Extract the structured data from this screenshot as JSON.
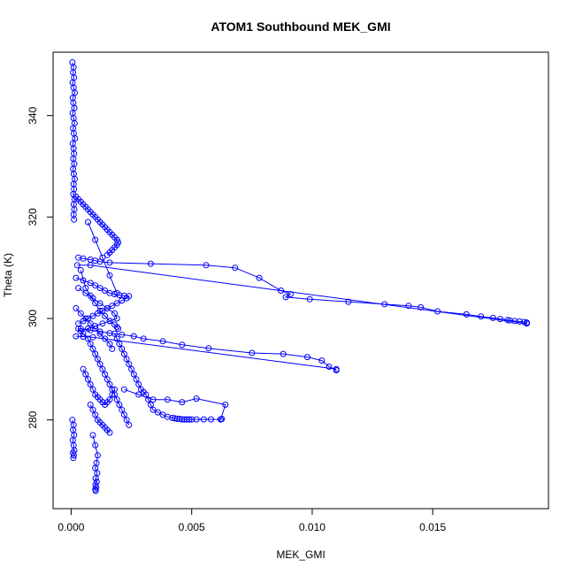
{
  "chart_data": {
    "type": "scatter",
    "title": "ATOM1 Southbound MEK_GMI",
    "xlabel": "MEK_GMI",
    "ylabel": "Theta (K)",
    "xlim": [
      -0.00075,
      0.0198
    ],
    "ylim": [
      262.5,
      352.5
    ],
    "xticks": [
      0.0,
      0.005,
      0.01,
      0.015
    ],
    "xtick_labels": [
      "0.000",
      "0.005",
      "0.010",
      "0.015"
    ],
    "yticks": [
      280,
      300,
      320,
      340
    ],
    "ytick_labels": [
      "280",
      "300",
      "320",
      "340"
    ],
    "grid": false,
    "legend": "none",
    "color": "#0000ff",
    "marker": "open-circle",
    "series": [
      {
        "x": [
          5e-05,
          0.0001,
          8e-05,
          0.00012,
          6e-05,
          0.0001,
          0.00015,
          7e-05,
          9e-05,
          0.00013,
          6e-05,
          0.0001,
          0.00014,
          8e-05,
          0.00011,
          0.00016,
          7e-05,
          0.0001,
          0.00012,
          9e-05,
          0.00013,
          8e-05,
          0.00011,
          0.00015,
          0.0001,
          0.00012,
          9e-05,
          0.00014,
          0.00011,
          0.00013,
          0.0001,
          0.00012
        ],
        "y": [
          350.5,
          349.5,
          348.5,
          347.5,
          346.5,
          345.5,
          344.5,
          343.5,
          342.5,
          341.5,
          340.5,
          339.5,
          338.5,
          337.5,
          336.5,
          335.5,
          334.5,
          333.5,
          332.5,
          331.5,
          330.5,
          329.5,
          328.5,
          327.5,
          326.5,
          325.5,
          324.5,
          323.5,
          322.5,
          321.5,
          320.5,
          319.5
        ]
      },
      {
        "x": [
          0.0002,
          0.0003,
          0.0004,
          0.0005,
          0.0006,
          0.0007,
          0.0008,
          0.0009,
          0.001,
          0.0011,
          0.0012,
          0.0013,
          0.0014,
          0.0015,
          0.0016,
          0.0017,
          0.0018,
          0.0019,
          0.00195,
          0.0019,
          0.0018,
          0.0017,
          0.0016,
          0.0015
        ],
        "y": [
          324.0,
          323.5,
          323.0,
          322.5,
          322.0,
          321.5,
          321.0,
          320.5,
          320.0,
          319.5,
          319.0,
          318.5,
          318.0,
          317.5,
          317.0,
          316.5,
          316.0,
          315.5,
          315.0,
          314.5,
          314.0,
          313.5,
          313.0,
          312.5
        ]
      },
      {
        "x": [
          0.0002,
          0.0005,
          0.0008,
          0.001,
          0.0012,
          0.0014,
          0.0016,
          0.0018,
          0.002,
          0.0022,
          0.0024,
          0.0023,
          0.0021,
          0.0019,
          0.0017,
          0.0015,
          0.0013,
          0.0011,
          0.0009,
          0.0007,
          0.0005,
          0.0003
        ],
        "y": [
          308.0,
          307.5,
          307.0,
          306.5,
          306.0,
          305.5,
          305.0,
          304.8,
          304.6,
          304.5,
          304.4,
          304.0,
          303.5,
          303.0,
          302.5,
          302.0,
          301.5,
          301.0,
          300.5,
          300.0,
          299.5,
          299.0
        ]
      },
      {
        "x": [
          0.0004,
          0.0006,
          0.0008,
          0.001,
          0.0012,
          0.0014,
          0.0016,
          0.0018,
          0.0019,
          0.00195
        ],
        "y": [
          309.5,
          306.0,
          304.5,
          303.0,
          301.5,
          300.5,
          299.5,
          298.8,
          298.3,
          298.0
        ]
      },
      {
        "x": [
          0.0007,
          0.001,
          0.0013,
          0.0016,
          0.0019
        ],
        "y": [
          319.0,
          315.5,
          312.0,
          308.5,
          305.0
        ]
      },
      {
        "x": [
          0.0003,
          0.0005,
          0.0008,
          0.001,
          0.0012,
          0.0016,
          0.0033,
          0.0056,
          0.0068,
          0.0078,
          0.0087,
          0.0091,
          0.0089,
          0.0099,
          0.0115,
          0.013,
          0.014,
          0.0145,
          0.0152,
          0.0164,
          0.017,
          0.0175,
          0.0178,
          0.0181,
          0.0182,
          0.0184,
          0.0186,
          0.0188,
          0.0189
        ],
        "y": [
          312.0,
          311.8,
          311.6,
          311.4,
          311.2,
          311.0,
          310.8,
          310.5,
          310.0,
          308.0,
          305.5,
          304.8,
          304.2,
          303.8,
          303.3,
          302.8,
          302.5,
          302.2,
          301.4,
          300.8,
          300.4,
          300.1,
          299.9,
          299.7,
          299.6,
          299.5,
          299.4,
          299.3,
          299.2
        ]
      },
      {
        "x": [
          0.00025,
          0.0008,
          0.0189
        ],
        "y": [
          310.5,
          310.5,
          299.0
        ]
      },
      {
        "x": [
          0.0004,
          0.0008,
          0.0012,
          0.0016,
          0.0021,
          0.0026,
          0.003,
          0.0038,
          0.0046,
          0.0057,
          0.0075,
          0.0088,
          0.0098,
          0.0104,
          0.0107,
          0.011
        ],
        "y": [
          298.0,
          297.7,
          297.4,
          297.1,
          296.8,
          296.5,
          296.0,
          295.5,
          294.8,
          294.1,
          293.2,
          293.0,
          292.4,
          291.7,
          290.5,
          289.8
        ]
      },
      {
        "x": [
          0.0002,
          0.0005,
          0.0009,
          0.011
        ],
        "y": [
          296.5,
          296.4,
          296.3,
          290.0
        ]
      },
      {
        "x": [
          0.0018,
          0.0019,
          0.002,
          0.0021,
          0.0022,
          0.0023,
          0.0024,
          0.0025,
          0.0026,
          0.0027,
          0.0028,
          0.0029,
          0.003,
          0.0031,
          0.0032,
          0.0033,
          0.0034,
          0.0036,
          0.0038,
          0.004,
          0.0042,
          0.0043,
          0.0044,
          0.0045,
          0.0046,
          0.0047,
          0.0048,
          0.0049,
          0.005,
          0.0052,
          0.0055,
          0.0058,
          0.0062,
          0.00625
        ],
        "y": [
          297.0,
          296.0,
          295.0,
          294.0,
          293.0,
          292.0,
          291.0,
          290.0,
          289.0,
          288.0,
          287.0,
          286.0,
          285.5,
          285.0,
          284.0,
          283.0,
          282.0,
          281.5,
          281.0,
          280.6,
          280.4,
          280.3,
          280.2,
          280.2,
          280.1,
          280.1,
          280.1,
          280.1,
          280.1,
          280.1,
          280.1,
          280.1,
          280.1,
          280.2
        ]
      },
      {
        "x": [
          0.0022,
          0.0028,
          0.0034,
          0.004,
          0.0046,
          0.0052,
          0.0064,
          0.0062
        ],
        "y": [
          286.0,
          285.0,
          284.0,
          284.0,
          283.5,
          284.2,
          283.0,
          280.1
        ]
      },
      {
        "x": [
          0.0009,
          0.001,
          0.0011,
          0.00105,
          0.001,
          0.00108,
          0.00102,
          0.00106,
          0.00101,
          0.00104,
          0.001,
          0.00102
        ],
        "y": [
          277.0,
          275.0,
          273.0,
          271.5,
          270.5,
          269.5,
          268.5,
          267.8,
          267.2,
          266.7,
          266.3,
          266.0
        ]
      },
      {
        "x": [
          5e-05,
          0.0001,
          8e-05,
          0.00012,
          7e-05,
          0.0001,
          0.00013,
          8e-05,
          0.00011,
          9e-05
        ],
        "y": [
          280.0,
          279.0,
          278.0,
          277.0,
          276.0,
          275.0,
          274.0,
          273.5,
          273.0,
          272.5
        ]
      },
      {
        "x": [
          0.0003,
          0.0005,
          0.0007,
          0.0008,
          0.0009,
          0.001,
          0.0011,
          0.0012,
          0.0013,
          0.0014,
          0.0015,
          0.0016,
          0.0017,
          0.0018,
          0.0019,
          0.002,
          0.0021,
          0.0022,
          0.0023,
          0.0024
        ],
        "y": [
          298.0,
          297.0,
          296.0,
          295.0,
          294.0,
          293.0,
          292.0,
          291.0,
          290.0,
          289.0,
          288.0,
          287.0,
          286.0,
          285.0,
          284.0,
          283.0,
          282.0,
          281.0,
          280.0,
          279.0
        ]
      },
      {
        "x": [
          0.0005,
          0.0006,
          0.0007,
          0.0008,
          0.0009,
          0.001,
          0.0011,
          0.0012,
          0.0013,
          0.0014,
          0.0015,
          0.0016,
          0.0017,
          0.0018
        ],
        "y": [
          290.0,
          289.0,
          288.0,
          287.0,
          286.0,
          285.0,
          284.5,
          284.0,
          283.5,
          283.0,
          283.5,
          284.0,
          285.0,
          286.0
        ]
      },
      {
        "x": [
          0.0008,
          0.0009,
          0.001,
          0.0011,
          0.0012,
          0.0013,
          0.0014,
          0.0015,
          0.0016
        ],
        "y": [
          283.0,
          282.0,
          281.0,
          280.0,
          279.5,
          279.0,
          278.5,
          278.0,
          277.5
        ]
      },
      {
        "x": [
          0.0003,
          0.0006,
          0.0009,
          0.0012,
          0.0015,
          0.0018,
          0.0019,
          0.0016,
          0.0013,
          0.001,
          0.0007,
          0.0004
        ],
        "y": [
          306.0,
          305.0,
          304.0,
          303.0,
          302.0,
          301.0,
          300.0,
          299.5,
          299.0,
          298.5,
          298.0,
          297.5
        ]
      },
      {
        "x": [
          0.0002,
          0.0004,
          0.0006,
          0.0008,
          0.001,
          0.0012,
          0.0014,
          0.0016,
          0.0017
        ],
        "y": [
          302.0,
          301.0,
          300.0,
          299.0,
          298.0,
          297.0,
          296.0,
          295.0,
          294.0
        ]
      }
    ]
  }
}
